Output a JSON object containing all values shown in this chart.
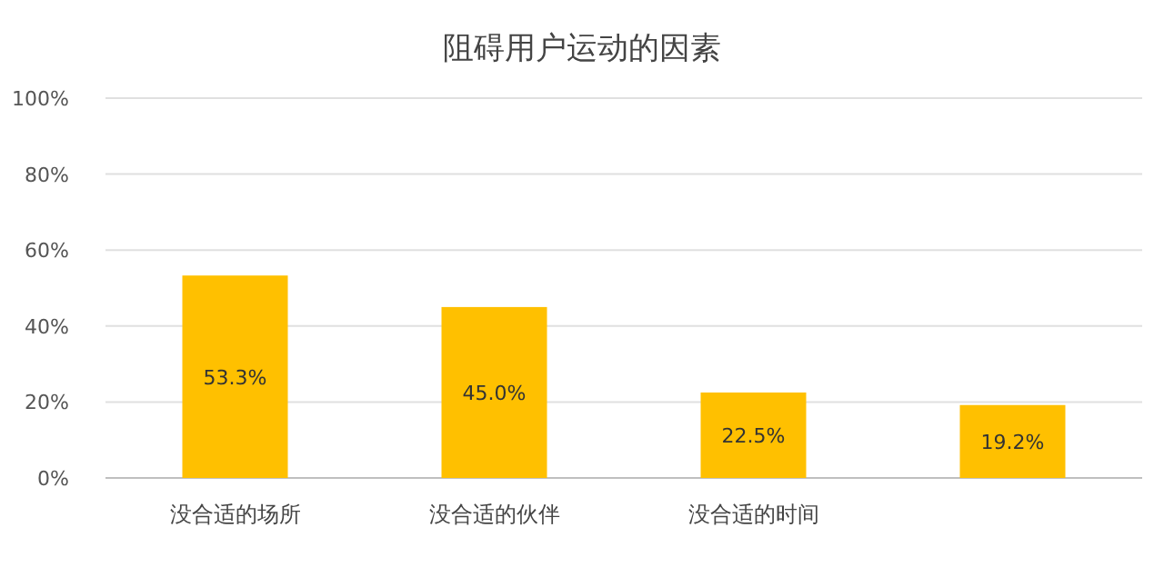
{
  "chart_data": {
    "type": "bar",
    "title": "阻碍用户运动的因素",
    "categories": [
      "没合适的场所",
      "没合适的伙伴",
      "没合适的时间",
      null
    ],
    "values": [
      53.3,
      45.0,
      22.5,
      19.2
    ],
    "value_labels": [
      "53.3%",
      "45.0%",
      "22.5%",
      "19.2%"
    ],
    "color": "#ffc000",
    "ylim": [
      0,
      100
    ],
    "yticks": [
      {
        "value": 0,
        "label": "0%"
      },
      {
        "value": 20,
        "label": "20%"
      },
      {
        "value": 40,
        "label": "40%"
      },
      {
        "value": 60,
        "label": "60%"
      },
      {
        "value": 80,
        "label": "80%"
      },
      {
        "value": 100,
        "label": "100%"
      }
    ],
    "grid": "y"
  }
}
